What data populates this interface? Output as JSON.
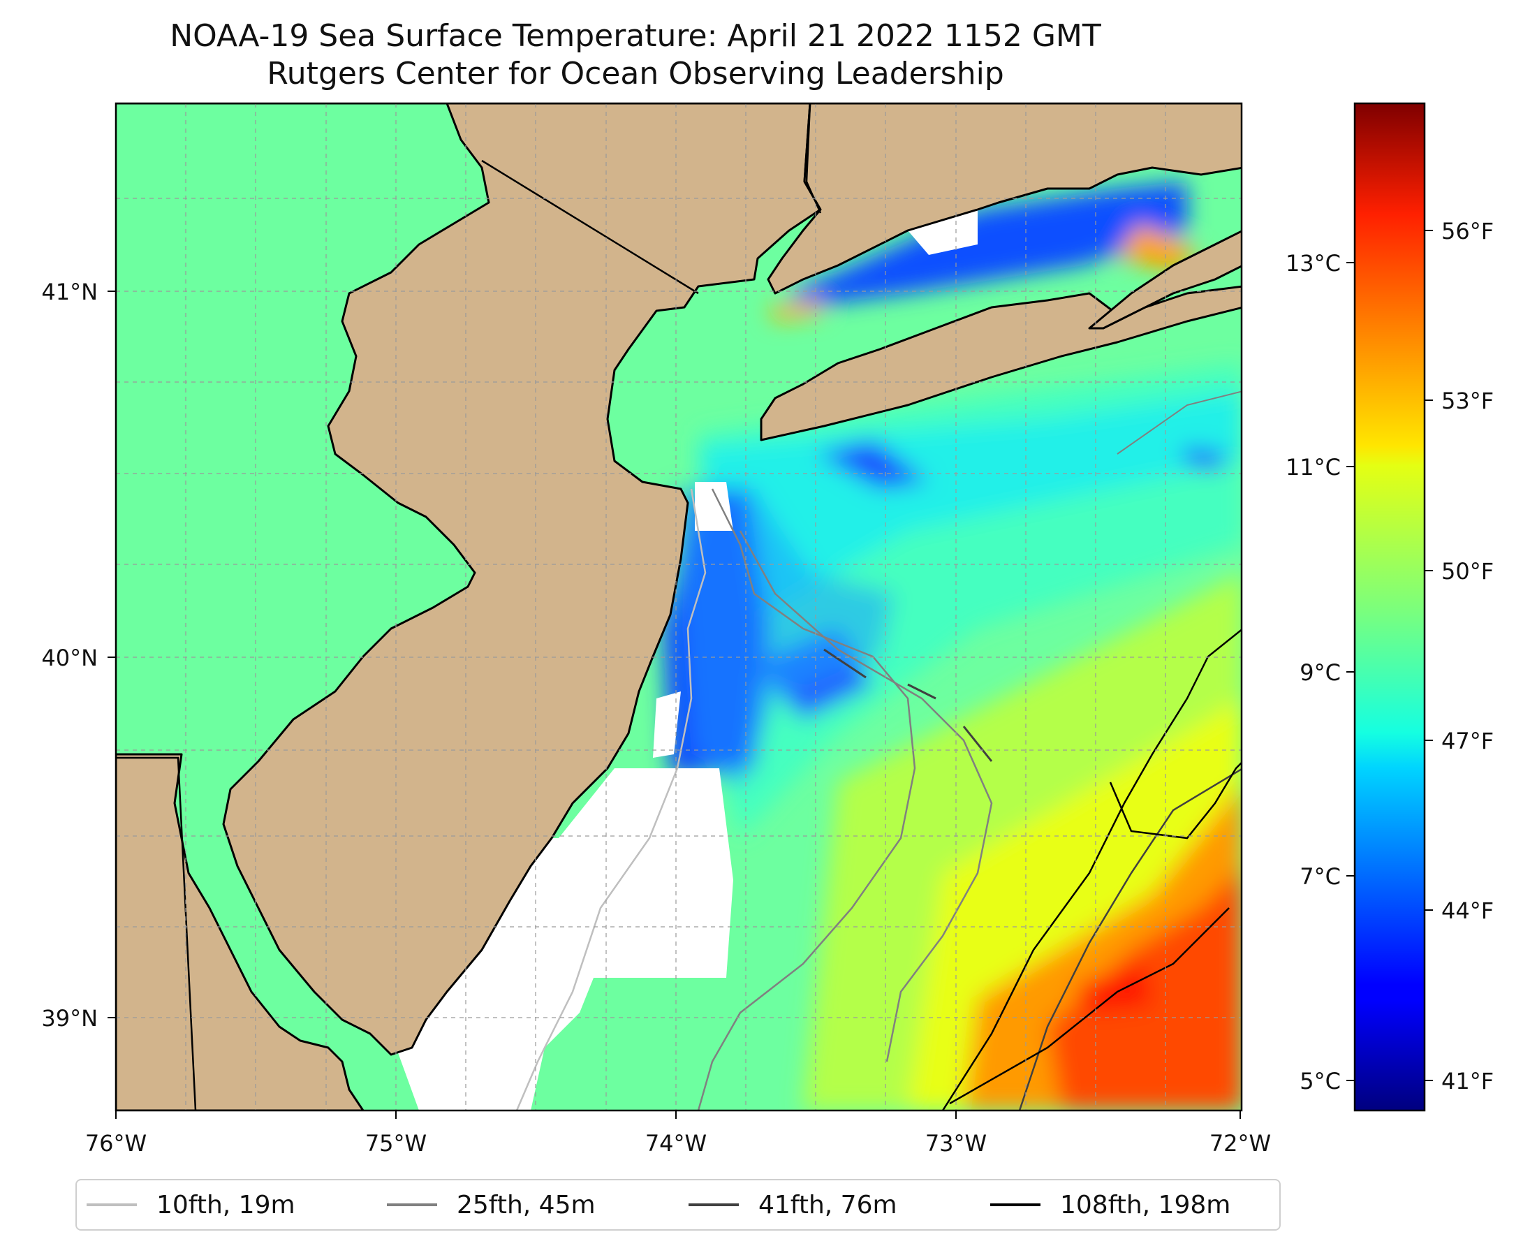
{
  "title": {
    "line1": "NOAA-19 Sea Surface Temperature: April 21 2022 1152 GMT",
    "line2": "Rutgers Center for Ocean Observing Leadership"
  },
  "map": {
    "lon_range": [
      -76,
      -72
    ],
    "lat_range": [
      38.75,
      41.5
    ],
    "land_color": "#d2b48c",
    "no_data_color": "#ffffff",
    "grid": "dashed gray",
    "x_ticks": [
      "76°W",
      "75°W",
      "74°W",
      "73°W",
      "72°W"
    ],
    "y_ticks": [
      "39°N",
      "40°N",
      "41°N"
    ]
  },
  "colorbar": {
    "colormap": "jet",
    "celsius_ticks": [
      "5°C",
      "7°C",
      "9°C",
      "11°C",
      "13°C"
    ],
    "fahrenheit_ticks": [
      "41°F",
      "44°F",
      "47°F",
      "50°F",
      "53°F",
      "56°F"
    ]
  },
  "legend": {
    "items": [
      {
        "label": "10fth, 19m",
        "color": "#bfbfbf"
      },
      {
        "label": "25fth, 45m",
        "color": "#808080"
      },
      {
        "label": "41fth, 76m",
        "color": "#404040"
      },
      {
        "label": "108fth, 198m",
        "color": "#000000"
      }
    ]
  }
}
